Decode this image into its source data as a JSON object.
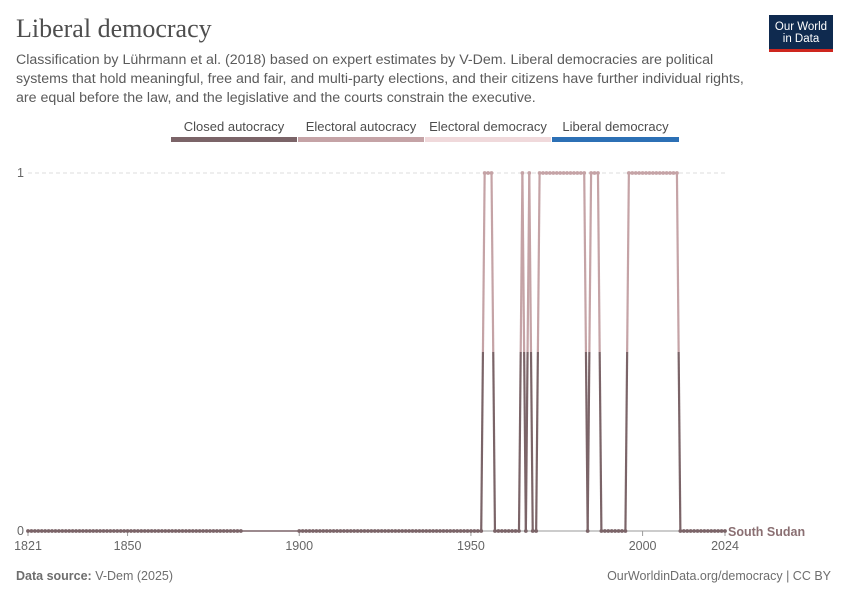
{
  "header": {
    "title": "Liberal democracy",
    "subtitle": "Classification by Lührmann et al. (2018) based on expert estimates by V-Dem. Liberal democracies are political systems that hold meaningful, free and fair, and multi-party elections, and their citizens have further individual rights, are equal before the law, and the legislative and the courts constrain the executive.",
    "logo_line1": "Our World",
    "logo_line2": "in Data"
  },
  "legend": [
    {
      "label": "Closed autocracy",
      "color": "#7b6468"
    },
    {
      "label": "Electoral autocracy",
      "color": "#c5a3a6"
    },
    {
      "label": "Electoral democracy",
      "color": "#f0d9db"
    },
    {
      "label": "Liberal democracy",
      "color": "#2c70b5"
    }
  ],
  "footer": {
    "source_label": "Data source:",
    "source_value": "V-Dem (2025)",
    "url": "OurWorldinData.org/democracy | CC BY"
  },
  "chart_data": {
    "type": "line",
    "title": "Liberal democracy",
    "xlabel": "",
    "ylabel": "",
    "xlim": [
      1821,
      2024
    ],
    "ylim": [
      0,
      1
    ],
    "y_ticks": [
      0,
      1
    ],
    "x_ticks": [
      1821,
      1850,
      1900,
      1950,
      2000,
      2024
    ],
    "grid": true,
    "gap": [
      1884,
      1899
    ],
    "colors": {
      "low": "#7b6468",
      "high": "#c5a3a6"
    },
    "series": [
      {
        "name": "South Sudan",
        "values_note": "",
        "x": [
          1821,
          1953,
          1954,
          1956,
          1957,
          1964,
          1965,
          1966,
          1967,
          1968,
          1969,
          1970,
          1971,
          1983,
          1984,
          1985,
          1987,
          1988,
          1995,
          1996,
          2010,
          2011,
          2024
        ],
        "y": [
          0,
          0,
          1,
          1,
          0,
          0,
          1,
          0,
          1,
          0,
          0,
          1,
          1,
          1,
          0,
          1,
          1,
          0,
          0,
          1,
          1,
          0,
          0
        ],
        "years_zero": [
          [
            1821,
            1883
          ],
          [
            1900,
            1953
          ],
          [
            1957,
            1964
          ],
          [
            1966,
            1966
          ],
          [
            1968,
            1969
          ],
          [
            1984,
            1984
          ],
          [
            1988,
            1995
          ],
          [
            2011,
            2024
          ]
        ],
        "years_one": [
          [
            1954,
            1956
          ],
          [
            1965,
            1965
          ],
          [
            1967,
            1967
          ],
          [
            1970,
            1983
          ],
          [
            1985,
            1987
          ],
          [
            1996,
            2010
          ]
        ]
      }
    ]
  }
}
